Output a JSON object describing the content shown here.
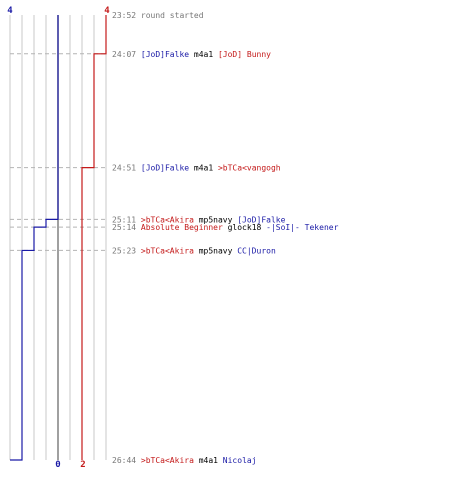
{
  "colors": {
    "blue_team": "#1a1aa6",
    "red_team": "#c41a1a",
    "time": "#777777",
    "weapon": "#000000",
    "grid": "#c8c8c8",
    "center": "#808080",
    "dash": "#b4b4b4"
  },
  "chart_data": {
    "type": "line",
    "x_axis": "time",
    "y_axis_note": "",
    "series": [
      {
        "name": "",
        "team": "blue",
        "start": 4,
        "end": 0,
        "values": [
          4,
          3,
          2,
          1,
          0
        ]
      },
      {
        "name": "",
        "team": "red",
        "start": 4,
        "end": 2,
        "values": [
          4,
          3,
          2
        ]
      }
    ],
    "start_counts": {
      "blue": "4",
      "red": "4"
    },
    "end_counts": {
      "blue": "0",
      "red": "2"
    },
    "events": [
      {
        "time": "23:52",
        "killer": "",
        "killer_team": "",
        "weapon": "round started",
        "victim": "",
        "victim_team": "",
        "blue": 4,
        "red": 4
      },
      {
        "time": "24:07",
        "killer": "[JoD]Falke",
        "killer_team": "blue",
        "weapon": "m4a1",
        "victim": "[JoD] Bunny",
        "victim_team": "red",
        "blue": 4,
        "red": 3
      },
      {
        "time": "24:51",
        "killer": "[JoD]Falke",
        "killer_team": "blue",
        "weapon": "m4a1",
        "victim": ">bTCa<vangogh",
        "victim_team": "red",
        "blue": 4,
        "red": 2
      },
      {
        "time": "25:11",
        "killer": ">bTCa<Akira",
        "killer_team": "red",
        "weapon": "mp5navy",
        "victim": "[JoD]Falke",
        "victim_team": "blue",
        "blue": 3,
        "red": 2
      },
      {
        "time": "25:14",
        "killer": "Absolute Beginner",
        "killer_team": "red",
        "weapon": "glock18",
        "victim": "-|SoI|- Tekener",
        "victim_team": "blue",
        "blue": 2,
        "red": 2
      },
      {
        "time": "25:23",
        "killer": ">bTCa<Akira",
        "killer_team": "red",
        "weapon": "mp5navy",
        "victim": "CC|Duron",
        "victim_team": "blue",
        "blue": 1,
        "red": 2
      },
      {
        "time": "26:44",
        "killer": ">bTCa<Akira",
        "killer_team": "red",
        "weapon": "m4a1",
        "victim": "Nicolaj",
        "victim_team": "blue",
        "blue": 0,
        "red": 2
      }
    ]
  }
}
